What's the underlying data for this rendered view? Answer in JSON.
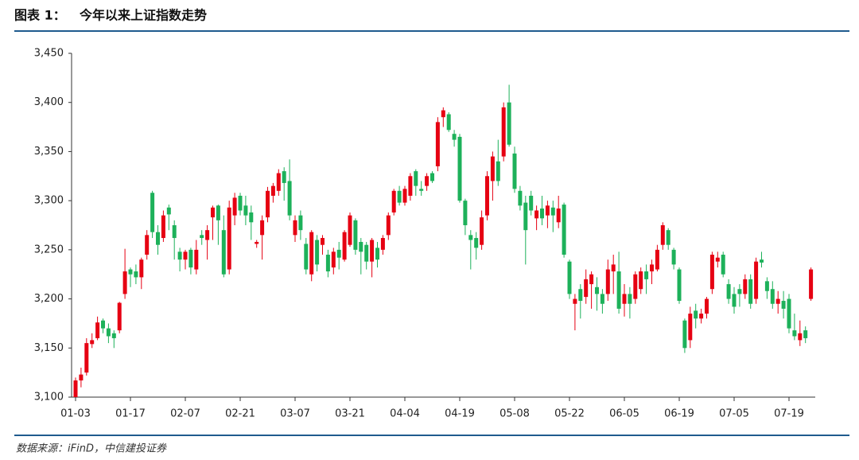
{
  "chart_data": {
    "type": "candlestick",
    "figure_label": "图表 1：",
    "title": "今年以来上证指数走势",
    "source": "数据来源：iFinD，中信建投证券",
    "colors": {
      "up": "#e60012",
      "down": "#1db15a"
    },
    "ylim": [
      3100,
      3450
    ],
    "yticks": [
      {
        "value": 3100,
        "label": "3,100"
      },
      {
        "value": 3150,
        "label": "3,150"
      },
      {
        "value": 3200,
        "label": "3,200"
      },
      {
        "value": 3250,
        "label": "3,250"
      },
      {
        "value": 3300,
        "label": "3,300"
      },
      {
        "value": 3350,
        "label": "3,350"
      },
      {
        "value": 3400,
        "label": "3,400"
      },
      {
        "value": 3450,
        "label": "3,450"
      }
    ],
    "categories": [
      "01-03",
      null,
      null,
      null,
      null,
      null,
      null,
      null,
      null,
      null,
      "01-17",
      null,
      null,
      null,
      null,
      null,
      null,
      null,
      null,
      null,
      "02-07",
      null,
      null,
      null,
      null,
      null,
      null,
      null,
      null,
      null,
      "02-21",
      null,
      null,
      null,
      null,
      null,
      null,
      null,
      null,
      null,
      "03-07",
      null,
      null,
      null,
      null,
      null,
      null,
      null,
      null,
      null,
      "03-21",
      null,
      null,
      null,
      null,
      null,
      null,
      null,
      null,
      null,
      "04-04",
      null,
      null,
      null,
      null,
      null,
      null,
      null,
      null,
      null,
      "04-19",
      null,
      null,
      null,
      null,
      null,
      null,
      null,
      null,
      null,
      "05-08",
      null,
      null,
      null,
      null,
      null,
      null,
      null,
      null,
      null,
      "05-22",
      null,
      null,
      null,
      null,
      null,
      null,
      null,
      null,
      null,
      "06-05",
      null,
      null,
      null,
      null,
      null,
      null,
      null,
      null,
      null,
      "06-19",
      null,
      null,
      null,
      null,
      null,
      null,
      null,
      null,
      null,
      "07-05",
      null,
      null,
      null,
      null,
      null,
      null,
      null,
      null,
      null,
      "07-19",
      null,
      null,
      null,
      null
    ],
    "open": [
      3097,
      3117,
      3125,
      3154,
      3160,
      3178,
      3170,
      3165,
      3168,
      3205,
      3230,
      3228,
      3222,
      3245,
      3308,
      3268,
      3262,
      3293,
      3275,
      3248,
      3240,
      3250,
      3230,
      3265,
      3260,
      3283,
      3295,
      3270,
      3230,
      3285,
      3305,
      3295,
      3288,
      3256,
      3265,
      3283,
      3305,
      3310,
      3330,
      3320,
      3265,
      3285,
      3256,
      3225,
      3260,
      3255,
      3245,
      3232,
      3250,
      3240,
      3255,
      3280,
      3258,
      3255,
      3238,
      3252,
      3250,
      3265,
      3288,
      3310,
      3298,
      3305,
      3330,
      3312,
      3315,
      3328,
      3335,
      3385,
      3388,
      3368,
      3365,
      3300,
      3265,
      3262,
      3255,
      3285,
      3320,
      3340,
      3345,
      3400,
      3348,
      3310,
      3298,
      3305,
      3282,
      3292,
      3285,
      3293,
      3278,
      3296,
      3238,
      3195,
      3210,
      3202,
      3215,
      3212,
      3205,
      3205,
      3228,
      3228,
      3195,
      3205,
      3200,
      3210,
      3228,
      3228,
      3230,
      3255,
      3270,
      3250,
      3230,
      3178,
      3158,
      3188,
      3180,
      3185,
      3210,
      3238,
      3245,
      3215,
      3205,
      3210,
      3205,
      3220,
      3200,
      3240,
      3218,
      3210,
      3195,
      3198,
      3200,
      3168,
      3158,
      3168,
      3200
    ],
    "high": [
      3120,
      3130,
      3160,
      3165,
      3182,
      3180,
      3175,
      3168,
      3197,
      3251,
      3232,
      3235,
      3242,
      3270,
      3310,
      3275,
      3290,
      3296,
      3280,
      3252,
      3250,
      3252,
      3260,
      3270,
      3275,
      3295,
      3296,
      3285,
      3300,
      3308,
      3308,
      3305,
      3295,
      3260,
      3285,
      3314,
      3318,
      3332,
      3334,
      3342,
      3285,
      3290,
      3262,
      3270,
      3265,
      3265,
      3250,
      3252,
      3258,
      3270,
      3288,
      3282,
      3262,
      3258,
      3262,
      3258,
      3265,
      3288,
      3312,
      3315,
      3315,
      3328,
      3332,
      3320,
      3328,
      3330,
      3385,
      3395,
      3390,
      3372,
      3368,
      3302,
      3270,
      3268,
      3290,
      3330,
      3350,
      3362,
      3400,
      3418,
      3355,
      3315,
      3305,
      3310,
      3295,
      3305,
      3300,
      3300,
      3305,
      3298,
      3240,
      3205,
      3215,
      3230,
      3228,
      3222,
      3210,
      3240,
      3245,
      3248,
      3215,
      3212,
      3228,
      3232,
      3235,
      3240,
      3255,
      3278,
      3272,
      3252,
      3232,
      3180,
      3192,
      3195,
      3190,
      3202,
      3248,
      3248,
      3248,
      3220,
      3212,
      3215,
      3225,
      3225,
      3242,
      3248,
      3222,
      3218,
      3208,
      3208,
      3205,
      3185,
      3178,
      3172,
      3232
    ],
    "low": [
      3090,
      3110,
      3122,
      3150,
      3158,
      3165,
      3155,
      3150,
      3165,
      3200,
      3212,
      3215,
      3210,
      3240,
      3262,
      3245,
      3258,
      3270,
      3240,
      3228,
      3230,
      3225,
      3225,
      3255,
      3240,
      3260,
      3255,
      3222,
      3225,
      3275,
      3285,
      3275,
      3260,
      3252,
      3240,
      3278,
      3298,
      3305,
      3300,
      3280,
      3258,
      3260,
      3225,
      3218,
      3228,
      3245,
      3222,
      3225,
      3230,
      3238,
      3253,
      3245,
      3225,
      3230,
      3222,
      3232,
      3245,
      3260,
      3285,
      3295,
      3295,
      3300,
      3305,
      3305,
      3310,
      3318,
      3330,
      3375,
      3370,
      3355,
      3298,
      3265,
      3230,
      3240,
      3250,
      3280,
      3300,
      3315,
      3340,
      3355,
      3308,
      3290,
      3235,
      3285,
      3270,
      3275,
      3272,
      3268,
      3272,
      3242,
      3200,
      3168,
      3180,
      3195,
      3190,
      3188,
      3185,
      3198,
      3205,
      3185,
      3182,
      3180,
      3195,
      3205,
      3205,
      3215,
      3228,
      3250,
      3250,
      3230,
      3195,
      3145,
      3150,
      3170,
      3175,
      3180,
      3205,
      3232,
      3222,
      3195,
      3185,
      3192,
      3200,
      3190,
      3195,
      3232,
      3200,
      3190,
      3185,
      3180,
      3165,
      3158,
      3152,
      3155,
      3198
    ],
    "close": [
      3117,
      3123,
      3155,
      3158,
      3176,
      3170,
      3162,
      3160,
      3196,
      3228,
      3225,
      3222,
      3240,
      3265,
      3268,
      3255,
      3285,
      3286,
      3262,
      3240,
      3248,
      3232,
      3250,
      3262,
      3270,
      3293,
      3280,
      3225,
      3293,
      3303,
      3290,
      3285,
      3278,
      3258,
      3280,
      3310,
      3315,
      3328,
      3318,
      3285,
      3280,
      3270,
      3230,
      3268,
      3235,
      3262,
      3228,
      3248,
      3242,
      3268,
      3285,
      3250,
      3248,
      3238,
      3260,
      3240,
      3262,
      3285,
      3310,
      3298,
      3312,
      3325,
      3315,
      3310,
      3325,
      3320,
      3380,
      3392,
      3372,
      3362,
      3300,
      3275,
      3260,
      3252,
      3283,
      3325,
      3345,
      3320,
      3395,
      3357,
      3312,
      3295,
      3270,
      3290,
      3290,
      3282,
      3295,
      3285,
      3292,
      3245,
      3205,
      3200,
      3198,
      3220,
      3225,
      3205,
      3195,
      3230,
      3235,
      3190,
      3205,
      3195,
      3225,
      3228,
      3220,
      3235,
      3250,
      3275,
      3255,
      3235,
      3198,
      3150,
      3185,
      3180,
      3185,
      3200,
      3245,
      3242,
      3225,
      3200,
      3192,
      3205,
      3220,
      3195,
      3238,
      3237,
      3208,
      3195,
      3200,
      3190,
      3170,
      3162,
      3165,
      3160,
      3230
    ]
  }
}
